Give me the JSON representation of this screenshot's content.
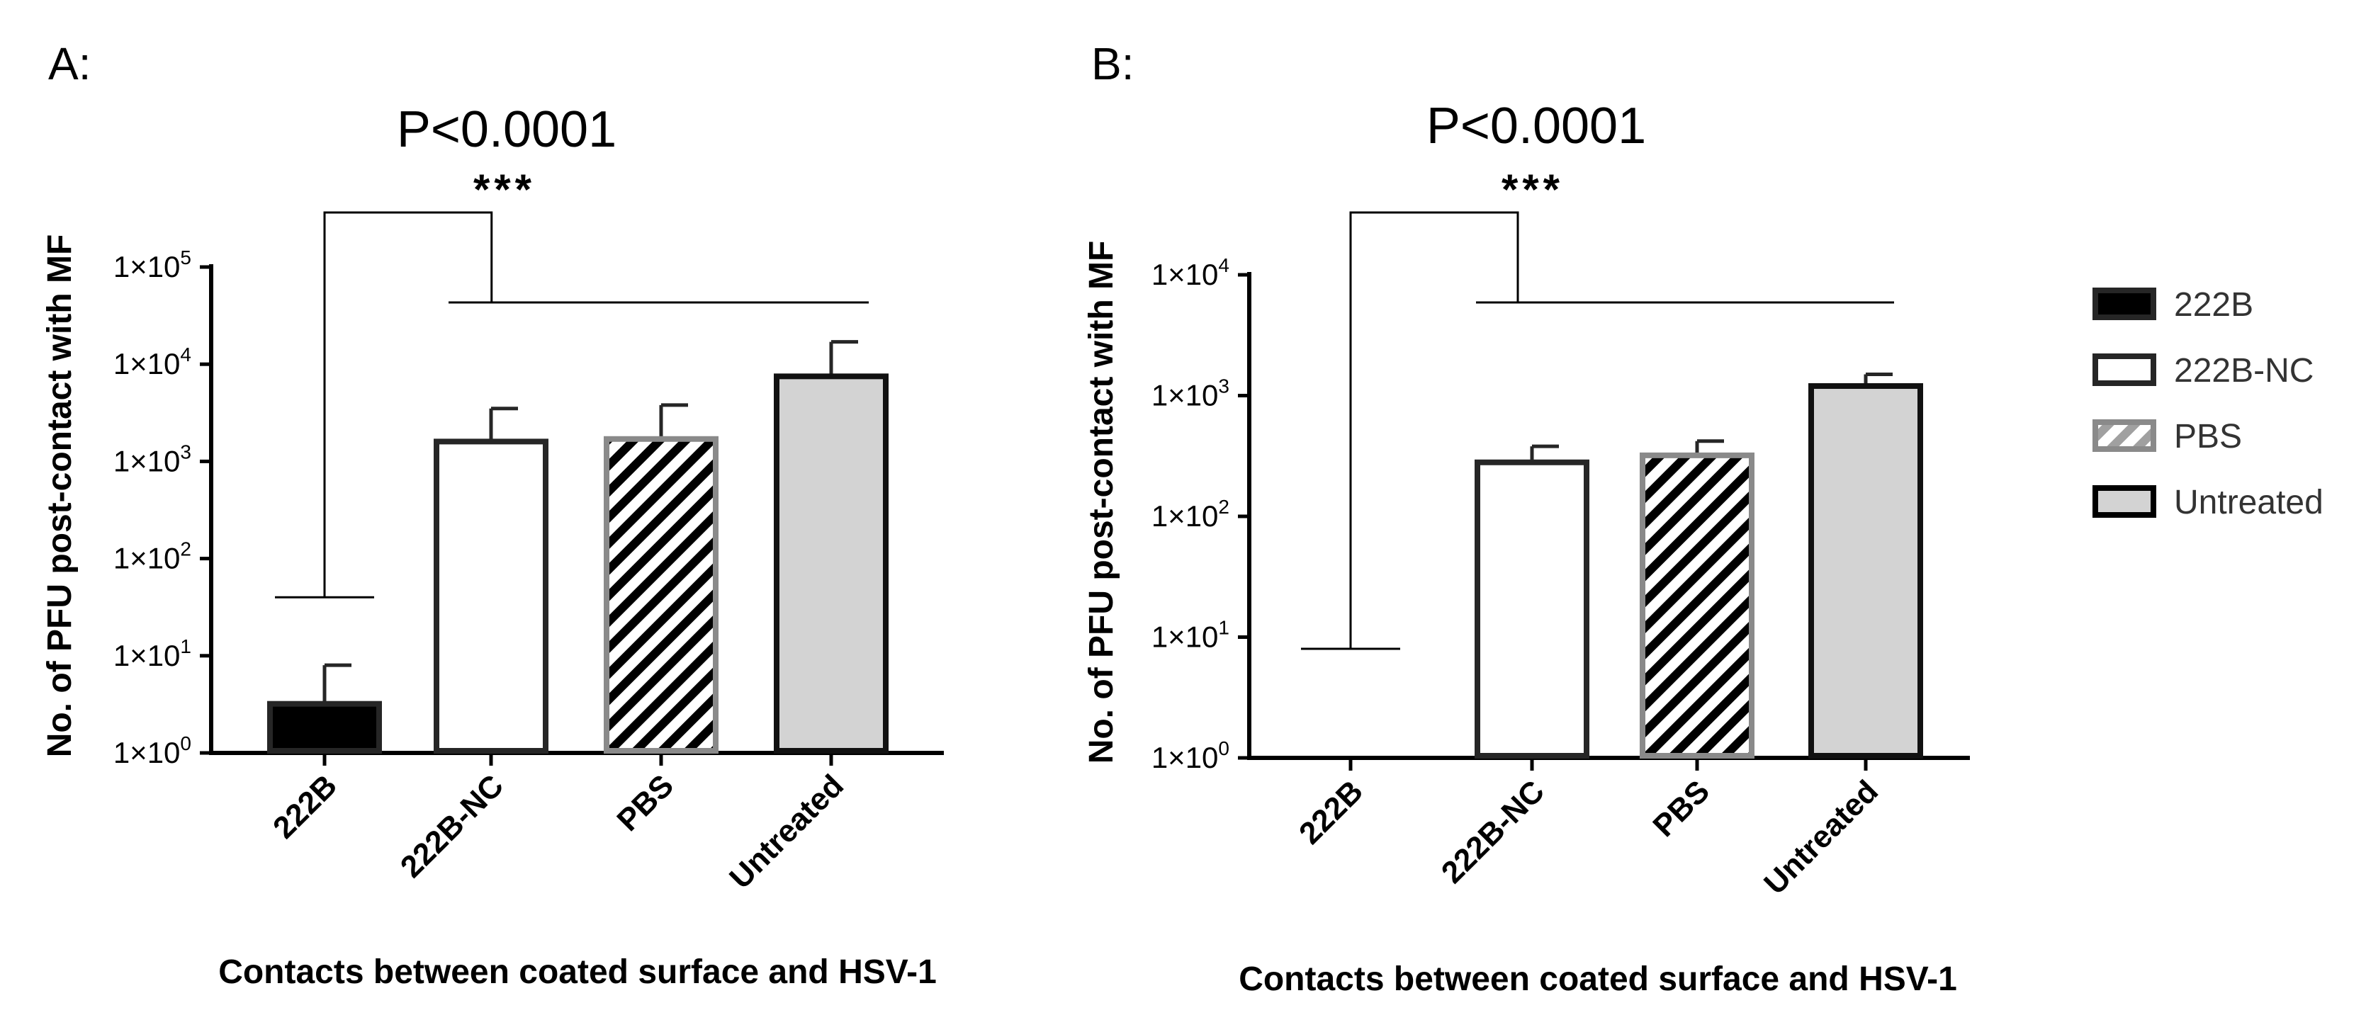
{
  "colors": {
    "222B": "#000000",
    "222B-NC": "#ffffff",
    "PBS": "#ffffff",
    "Untreated": "#d3d3d3",
    "PBS_stripe": "#000000",
    "PBS_stripe_legend": "#a0a0a0",
    "PBS_border": "#8a8a8a",
    "default_border": "#262626"
  },
  "legend": {
    "items": [
      {
        "key": "222B",
        "label": "222B"
      },
      {
        "key": "222B-NC",
        "label": "222B-NC"
      },
      {
        "key": "PBS",
        "label": "PBS"
      },
      {
        "key": "Untreated",
        "label": "Untreated"
      }
    ]
  },
  "chart_data": [
    {
      "panel": "A:",
      "type": "bar",
      "scale": "log10",
      "title": "P<0.0001",
      "significance": "***",
      "xlabel": "Contacts between coated surface and HSV-1",
      "ylabel": "No. of PFU post-contact with MF",
      "ylim": [
        1,
        100000
      ],
      "yticks": [
        {
          "value": 1,
          "base": "1×10",
          "exp": "0"
        },
        {
          "value": 10,
          "base": "1×10",
          "exp": "1"
        },
        {
          "value": 100,
          "base": "1×10",
          "exp": "2"
        },
        {
          "value": 1000,
          "base": "1×10",
          "exp": "3"
        },
        {
          "value": 10000,
          "base": "1×10",
          "exp": "4"
        },
        {
          "value": 100000,
          "base": "1×10",
          "exp": "5"
        }
      ],
      "categories": [
        "222B",
        "222B-NC",
        "PBS",
        "Untreated"
      ],
      "values": [
        3.2,
        1600,
        1700,
        7500
      ],
      "errors_upper": [
        8,
        3500,
        3800,
        17000
      ],
      "bracket_left_top": 40
    },
    {
      "panel": "B:",
      "type": "bar",
      "scale": "log10",
      "title": "P<0.0001",
      "significance": "***",
      "xlabel": "Contacts between coated surface and HSV-1",
      "ylabel": "No. of PFU post-contact with MF",
      "ylim": [
        1,
        10000
      ],
      "yticks": [
        {
          "value": 1,
          "base": "1×10",
          "exp": "0"
        },
        {
          "value": 10,
          "base": "1×10",
          "exp": "1"
        },
        {
          "value": 100,
          "base": "1×10",
          "exp": "2"
        },
        {
          "value": 1000,
          "base": "1×10",
          "exp": "3"
        },
        {
          "value": 10000,
          "base": "1×10",
          "exp": "4"
        }
      ],
      "categories": [
        "222B",
        "222B-NC",
        "PBS",
        "Untreated"
      ],
      "values": [
        null,
        280,
        320,
        1200
      ],
      "errors_upper": [
        null,
        380,
        420,
        1500
      ],
      "bracket_left_top": 8
    }
  ]
}
